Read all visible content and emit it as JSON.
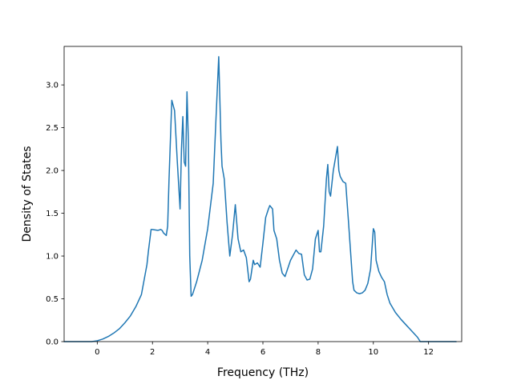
{
  "chart_data": {
    "type": "line",
    "title": "",
    "xlabel": "Frequency (THz)",
    "ylabel": "Density of States",
    "xlim": [
      -1.2,
      13.2
    ],
    "ylim": [
      0.0,
      3.45
    ],
    "grid": false,
    "legend": "none",
    "xticks": [
      0,
      2,
      4,
      6,
      8,
      10,
      12
    ],
    "xtick_labels": [
      "0",
      "2",
      "4",
      "6",
      "8",
      "10",
      "12"
    ],
    "yticks": [
      0.0,
      0.5,
      1.0,
      1.5,
      2.0,
      2.5,
      3.0
    ],
    "ytick_labels": [
      "0.0",
      "0.5",
      "1.0",
      "1.5",
      "2.0",
      "2.5",
      "3.0"
    ],
    "series": [
      {
        "color": "#1f77b4",
        "x": [
          -1.2,
          -0.2,
          0.0,
          0.2,
          0.4,
          0.6,
          0.8,
          1.0,
          1.2,
          1.4,
          1.6,
          1.8,
          1.85,
          1.95,
          2.0,
          2.2,
          2.3,
          2.35,
          2.4,
          2.5,
          2.55,
          2.6,
          2.7,
          2.8,
          2.9,
          3.0,
          3.05,
          3.1,
          3.15,
          3.2,
          3.25,
          3.3,
          3.35,
          3.4,
          3.45,
          3.5,
          3.6,
          3.8,
          4.0,
          4.2,
          4.3,
          4.4,
          4.48,
          4.52,
          4.6,
          4.7,
          4.8,
          4.9,
          5.0,
          5.1,
          5.2,
          5.3,
          5.4,
          5.5,
          5.55,
          5.65,
          5.7,
          5.8,
          5.9,
          6.0,
          6.1,
          6.2,
          6.25,
          6.35,
          6.4,
          6.5,
          6.6,
          6.7,
          6.8,
          7.0,
          7.2,
          7.3,
          7.4,
          7.5,
          7.6,
          7.7,
          7.8,
          7.9,
          8.0,
          8.05,
          8.1,
          8.2,
          8.3,
          8.35,
          8.4,
          8.45,
          8.55,
          8.7,
          8.75,
          8.8,
          8.9,
          9.0,
          9.1,
          9.25,
          9.3,
          9.4,
          9.5,
          9.6,
          9.7,
          9.8,
          9.9,
          10.0,
          10.05,
          10.1,
          10.2,
          10.3,
          10.4,
          10.5,
          10.6,
          10.8,
          11.0,
          11.2,
          11.4,
          11.6,
          11.7,
          11.8,
          12.0,
          13.0
        ],
        "y": [
          0.0,
          0.0,
          0.01,
          0.03,
          0.06,
          0.1,
          0.15,
          0.22,
          0.3,
          0.41,
          0.55,
          0.9,
          1.05,
          1.31,
          1.31,
          1.3,
          1.31,
          1.3,
          1.27,
          1.24,
          1.35,
          1.9,
          2.82,
          2.7,
          2.1,
          1.55,
          2.25,
          2.63,
          2.1,
          2.05,
          2.92,
          2.35,
          1.0,
          0.53,
          0.55,
          0.6,
          0.7,
          0.95,
          1.32,
          1.85,
          2.6,
          3.33,
          2.35,
          2.05,
          1.9,
          1.4,
          1.0,
          1.25,
          1.6,
          1.2,
          1.05,
          1.07,
          0.98,
          0.7,
          0.73,
          0.95,
          0.9,
          0.92,
          0.87,
          1.15,
          1.45,
          1.55,
          1.59,
          1.55,
          1.3,
          1.2,
          0.95,
          0.8,
          0.76,
          0.95,
          1.07,
          1.03,
          1.02,
          0.78,
          0.72,
          0.73,
          0.85,
          1.2,
          1.3,
          1.05,
          1.05,
          1.35,
          1.9,
          2.07,
          1.75,
          1.7,
          2.0,
          2.28,
          2.0,
          1.93,
          1.87,
          1.85,
          1.4,
          0.7,
          0.6,
          0.57,
          0.56,
          0.57,
          0.6,
          0.68,
          0.85,
          1.32,
          1.28,
          0.95,
          0.82,
          0.75,
          0.7,
          0.55,
          0.45,
          0.34,
          0.26,
          0.19,
          0.12,
          0.05,
          0.0,
          0.0,
          0.0,
          0.0
        ]
      }
    ]
  }
}
